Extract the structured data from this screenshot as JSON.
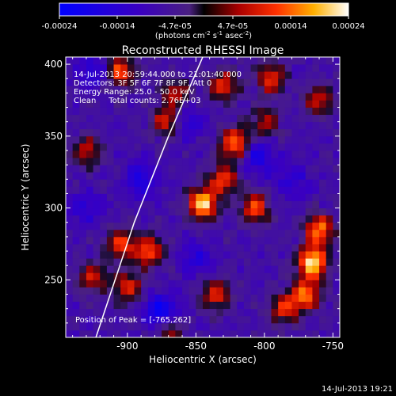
{
  "colorbar": {
    "ticks": [
      "-0.00024",
      "-0.00014",
      "-4.7e-05",
      "4.7e-05",
      "0.00014",
      "0.00024"
    ],
    "unit_prefix": "(photons cm",
    "unit_exp1": "-2",
    "unit_mid": " s",
    "unit_exp2": "-1",
    "unit_mid2": " asec",
    "unit_exp3": "-2",
    "unit_suffix": ")"
  },
  "chart_data": {
    "type": "heatmap",
    "title": "Reconstructed RHESSI Image",
    "xlabel": "Heliocentric X (arcsec)",
    "ylabel": "Heliocentric Y (arcsec)",
    "xlim": [
      -945,
      -745
    ],
    "ylim": [
      210,
      405
    ],
    "xticks": [
      "-900",
      "-850",
      "-800",
      "-750"
    ],
    "xtick_values": [
      -900,
      -850,
      -800,
      -750
    ],
    "yticks": [
      "250",
      "300",
      "350",
      "400"
    ],
    "ytick_values": [
      250,
      300,
      350,
      400
    ],
    "clim": [
      -0.00024,
      0.00024
    ],
    "annotations": [
      "14-Jul-2013 20:59:44.000 to 21:01:40.000",
      "Detectors: 3F 5F 6F 7F 8F 9F, Att 0",
      "Energy Range: 25.0 - 50.0 keV",
      "Clean     Total counts: 2.76E+03"
    ],
    "peak_label": "Position of Peak = [-765,262]",
    "peak": [
      -765,
      262
    ],
    "hot_spots": [
      {
        "x": -765,
        "y": 262,
        "amp": 1.0
      },
      {
        "x": -760,
        "y": 285,
        "amp": 0.75
      },
      {
        "x": -770,
        "y": 240,
        "amp": 0.7
      },
      {
        "x": -845,
        "y": 303,
        "amp": 0.95
      },
      {
        "x": -830,
        "y": 320,
        "amp": 0.6
      },
      {
        "x": -822,
        "y": 345,
        "amp": 0.75
      },
      {
        "x": -807,
        "y": 300,
        "amp": 0.6
      },
      {
        "x": -905,
        "y": 275,
        "amp": 0.6
      },
      {
        "x": -885,
        "y": 270,
        "amp": 0.65
      },
      {
        "x": -900,
        "y": 245,
        "amp": 0.55
      },
      {
        "x": -925,
        "y": 252,
        "amp": 0.5
      },
      {
        "x": -905,
        "y": 395,
        "amp": 0.65
      },
      {
        "x": -830,
        "y": 385,
        "amp": 0.55
      },
      {
        "x": -795,
        "y": 390,
        "amp": 0.6
      },
      {
        "x": -760,
        "y": 375,
        "amp": 0.5
      },
      {
        "x": -872,
        "y": 360,
        "amp": 0.5
      },
      {
        "x": -930,
        "y": 340,
        "amp": 0.45
      },
      {
        "x": -835,
        "y": 240,
        "amp": 0.55
      },
      {
        "x": -785,
        "y": 230,
        "amp": 0.55
      },
      {
        "x": -870,
        "y": 215,
        "amp": 0.4
      },
      {
        "x": -865,
        "y": 380,
        "amp": 0.45
      },
      {
        "x": -800,
        "y": 360,
        "amp": 0.4
      }
    ],
    "cold_spots": [
      {
        "x": -875,
        "y": 228,
        "amp": 0.9
      },
      {
        "x": -890,
        "y": 320,
        "amp": 0.6
      },
      {
        "x": -805,
        "y": 335,
        "amp": 0.6
      },
      {
        "x": -925,
        "y": 395,
        "amp": 0.5
      },
      {
        "x": -850,
        "y": 265,
        "amp": 0.45
      },
      {
        "x": -930,
        "y": 300,
        "amp": 0.4
      },
      {
        "x": -780,
        "y": 320,
        "amp": 0.45
      },
      {
        "x": -855,
        "y": 360,
        "amp": 0.45
      }
    ],
    "limb": [
      [
        -923,
        210
      ],
      [
        -895,
        290
      ],
      [
        -870,
        350
      ],
      [
        -845,
        405
      ]
    ]
  },
  "footer": {
    "timestamp": "14-Jul-2013 19:21"
  }
}
